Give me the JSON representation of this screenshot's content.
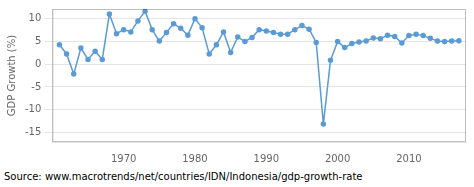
{
  "chart_data": {
    "type": "line",
    "y_label": "GDP Growth (%)",
    "annotations": [
      "Source: www.macrotrends/net/countries/IDN/Indonesia/gdp-growth-rate"
    ],
    "x": [
      1961,
      1962,
      1963,
      1964,
      1965,
      1966,
      1967,
      1968,
      1969,
      1970,
      1971,
      1972,
      1973,
      1974,
      1975,
      1976,
      1977,
      1978,
      1979,
      1980,
      1981,
      1982,
      1983,
      1984,
      1985,
      1986,
      1987,
      1988,
      1989,
      1990,
      1991,
      1992,
      1993,
      1994,
      1995,
      1996,
      1997,
      1998,
      1999,
      2000,
      2001,
      2002,
      2003,
      2004,
      2005,
      2006,
      2007,
      2008,
      2009,
      2010,
      2011,
      2012,
      2013,
      2014,
      2015,
      2016,
      2017
    ],
    "values": [
      4.2,
      2.2,
      -2.2,
      3.5,
      1.0,
      2.8,
      1.0,
      10.9,
      6.6,
      7.5,
      7.0,
      9.4,
      11.5,
      7.5,
      5.0,
      6.9,
      8.8,
      7.8,
      6.3,
      9.9,
      7.9,
      2.2,
      4.2,
      7.0,
      2.5,
      5.9,
      4.9,
      5.8,
      7.5,
      7.2,
      6.9,
      6.5,
      6.5,
      7.5,
      8.4,
      7.6,
      4.7,
      -13.1,
      0.8,
      4.9,
      3.6,
      4.5,
      4.8,
      5.0,
      5.7,
      5.5,
      6.3,
      6.0,
      4.6,
      6.2,
      6.5,
      6.2,
      5.6,
      5.0,
      4.9,
      5.0,
      5.1
    ],
    "color": "#5b9bd5",
    "marker": "circle",
    "xlim": [
      1960,
      2018
    ],
    "xticks": [
      1970,
      1980,
      1990,
      2000,
      2010
    ],
    "ylim": [
      -17,
      12
    ],
    "yticks": [
      10,
      5,
      0,
      -5,
      -10,
      -15
    ],
    "grid": "y"
  }
}
